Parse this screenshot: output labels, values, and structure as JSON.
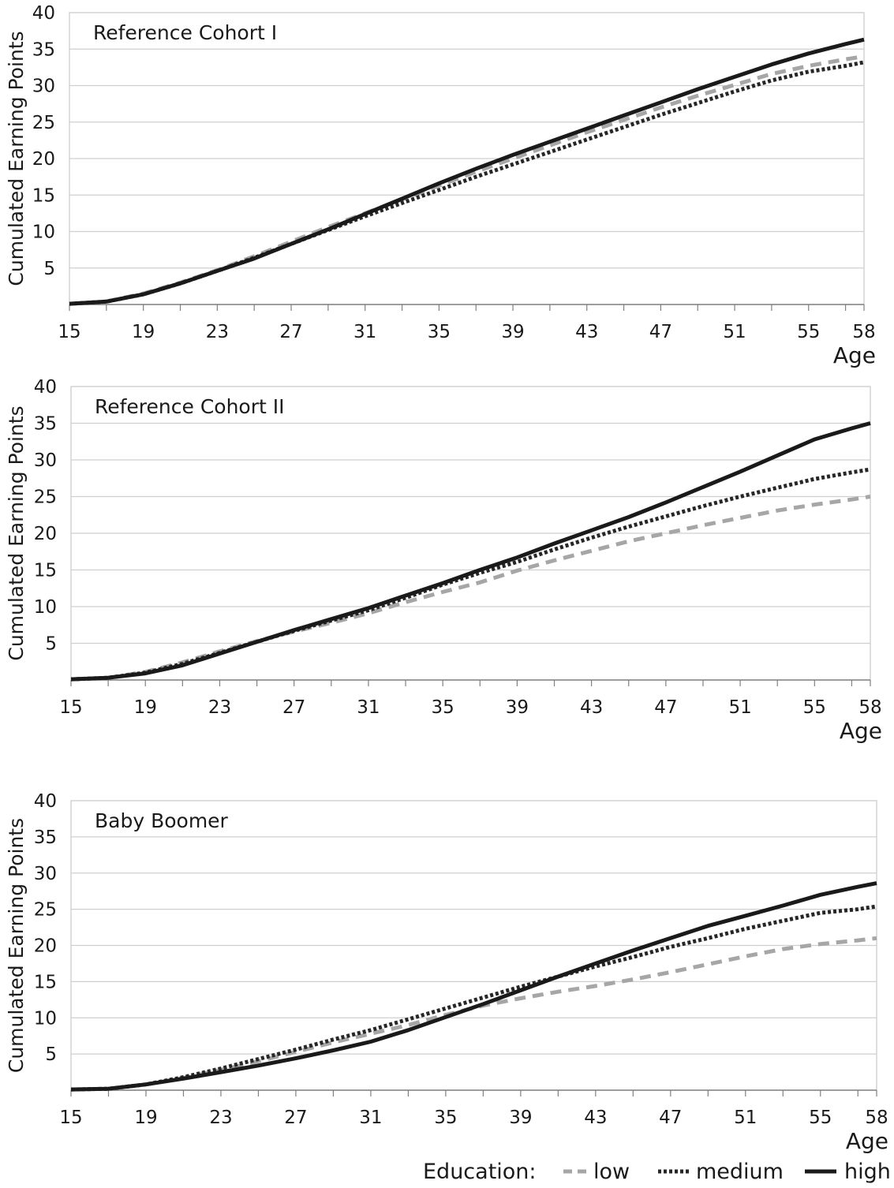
{
  "figure": {
    "legend": {
      "title": "Education:",
      "entries": [
        {
          "label": "low",
          "style": "dashed",
          "color": "#a6a6a6"
        },
        {
          "label": "medium",
          "style": "dotted",
          "color": "#262626"
        },
        {
          "label": "high",
          "style": "solid",
          "color": "#1a1a1a"
        }
      ],
      "placement": "bottom-right"
    }
  },
  "chart_data": [
    {
      "type": "line",
      "title": "Reference Cohort I",
      "xlabel": "Age",
      "ylabel": "Cumulated Earning Points",
      "xlim": [
        15,
        58
      ],
      "ylim": [
        0,
        40
      ],
      "xticks": [
        15,
        19,
        23,
        27,
        31,
        35,
        39,
        43,
        47,
        51,
        55,
        58
      ],
      "yticks": [
        5,
        10,
        15,
        20,
        25,
        30,
        35,
        40
      ],
      "grid": true,
      "x": [
        15,
        17,
        19,
        21,
        23,
        25,
        27,
        29,
        31,
        33,
        35,
        37,
        39,
        41,
        43,
        45,
        47,
        49,
        51,
        53,
        55,
        57,
        58
      ],
      "series": [
        {
          "name": "low",
          "values": [
            0.1,
            0.4,
            1.5,
            3.0,
            4.7,
            6.6,
            8.6,
            10.6,
            12.5,
            14.4,
            16.3,
            18.2,
            20.0,
            21.8,
            23.6,
            25.3,
            27.0,
            28.6,
            30.1,
            31.6,
            32.7,
            33.6,
            34.0
          ]
        },
        {
          "name": "medium",
          "values": [
            0.1,
            0.4,
            1.4,
            2.9,
            4.6,
            6.4,
            8.3,
            10.2,
            12.1,
            13.9,
            15.7,
            17.5,
            19.2,
            20.9,
            22.6,
            24.3,
            26.0,
            27.6,
            29.2,
            30.7,
            31.9,
            32.7,
            33.2
          ]
        },
        {
          "name": "high",
          "values": [
            0.1,
            0.4,
            1.4,
            2.9,
            4.6,
            6.3,
            8.3,
            10.3,
            12.4,
            14.5,
            16.6,
            18.6,
            20.5,
            22.3,
            24.1,
            25.9,
            27.7,
            29.5,
            31.2,
            32.9,
            34.4,
            35.7,
            36.3
          ]
        }
      ]
    },
    {
      "type": "line",
      "title": "Reference Cohort II",
      "xlabel": "Age",
      "ylabel": "Cumulated Earning Points",
      "xlim": [
        15,
        58
      ],
      "ylim": [
        0,
        40
      ],
      "xticks": [
        15,
        19,
        23,
        27,
        31,
        35,
        39,
        43,
        47,
        51,
        55,
        58
      ],
      "yticks": [
        5,
        10,
        15,
        20,
        25,
        30,
        35,
        40
      ],
      "grid": true,
      "x": [
        15,
        17,
        19,
        21,
        23,
        25,
        27,
        29,
        31,
        33,
        35,
        37,
        39,
        41,
        43,
        45,
        47,
        49,
        51,
        53,
        55,
        57,
        58
      ],
      "series": [
        {
          "name": "low",
          "values": [
            0.1,
            0.3,
            1.1,
            2.4,
            3.9,
            5.3,
            6.6,
            7.8,
            9.1,
            10.6,
            12.0,
            13.3,
            14.9,
            16.3,
            17.6,
            18.9,
            20.0,
            21.1,
            22.1,
            23.1,
            23.9,
            24.6,
            25.0
          ]
        },
        {
          "name": "medium",
          "values": [
            0.1,
            0.3,
            1.0,
            2.2,
            3.7,
            5.2,
            6.7,
            8.1,
            9.5,
            11.2,
            13.0,
            14.6,
            16.1,
            17.8,
            19.4,
            20.9,
            22.3,
            23.7,
            25.0,
            26.2,
            27.4,
            28.3,
            28.7
          ]
        },
        {
          "name": "high",
          "values": [
            0.1,
            0.3,
            0.9,
            2.0,
            3.6,
            5.2,
            6.8,
            8.3,
            9.8,
            11.5,
            13.2,
            15.0,
            16.7,
            18.6,
            20.4,
            22.2,
            24.2,
            26.3,
            28.4,
            30.6,
            32.8,
            34.3,
            35.0
          ]
        }
      ]
    },
    {
      "type": "line",
      "title": "Baby Boomer",
      "xlabel": "Age",
      "ylabel": "Cumulated Earning Points",
      "xlim": [
        15,
        58
      ],
      "ylim": [
        0,
        40
      ],
      "xticks": [
        15,
        19,
        23,
        27,
        31,
        35,
        39,
        43,
        47,
        51,
        55,
        58
      ],
      "yticks": [
        5,
        10,
        15,
        20,
        25,
        30,
        35,
        40
      ],
      "grid": true,
      "x": [
        15,
        17,
        19,
        21,
        23,
        25,
        27,
        29,
        31,
        33,
        35,
        37,
        39,
        41,
        43,
        45,
        47,
        49,
        51,
        53,
        55,
        57,
        58
      ],
      "series": [
        {
          "name": "low",
          "values": [
            0.1,
            0.2,
            0.8,
            1.7,
            2.8,
            4.0,
            5.3,
            6.6,
            7.8,
            9.0,
            10.4,
            11.7,
            12.7,
            13.6,
            14.4,
            15.3,
            16.3,
            17.4,
            18.5,
            19.5,
            20.2,
            20.7,
            21.0
          ]
        },
        {
          "name": "medium",
          "values": [
            0.1,
            0.2,
            0.8,
            1.8,
            3.0,
            4.3,
            5.6,
            7.0,
            8.3,
            9.8,
            11.3,
            12.8,
            14.3,
            15.7,
            17.1,
            18.4,
            19.8,
            21.0,
            22.3,
            23.4,
            24.5,
            25.0,
            25.4
          ]
        },
        {
          "name": "high",
          "values": [
            0.1,
            0.2,
            0.8,
            1.6,
            2.5,
            3.4,
            4.4,
            5.5,
            6.7,
            8.3,
            10.1,
            11.9,
            13.8,
            15.7,
            17.5,
            19.3,
            21.0,
            22.7,
            24.1,
            25.5,
            27.0,
            28.1,
            28.6
          ]
        }
      ]
    }
  ]
}
